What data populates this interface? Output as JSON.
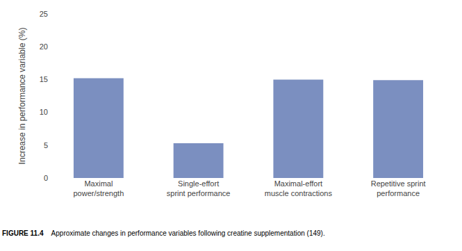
{
  "chart_data": {
    "type": "bar",
    "categories": [
      "Maximal\npower/strength",
      "Single-effort\nsprint performance",
      "Maximal-effort\nmuscle contractions",
      "Repetitive sprint\nperformance"
    ],
    "values": [
      15.2,
      5.3,
      15.0,
      14.9
    ],
    "color": "#7b8fc0",
    "ylabel": "Increase in performance variable (%)",
    "ylim": [
      0,
      25
    ],
    "yticks": [
      0,
      5,
      10,
      15,
      20,
      25
    ],
    "grid": false,
    "annotations": [
      "FIGURE 11.4",
      "Approximate changes in performance variables following creatine supplementation (149)."
    ]
  }
}
